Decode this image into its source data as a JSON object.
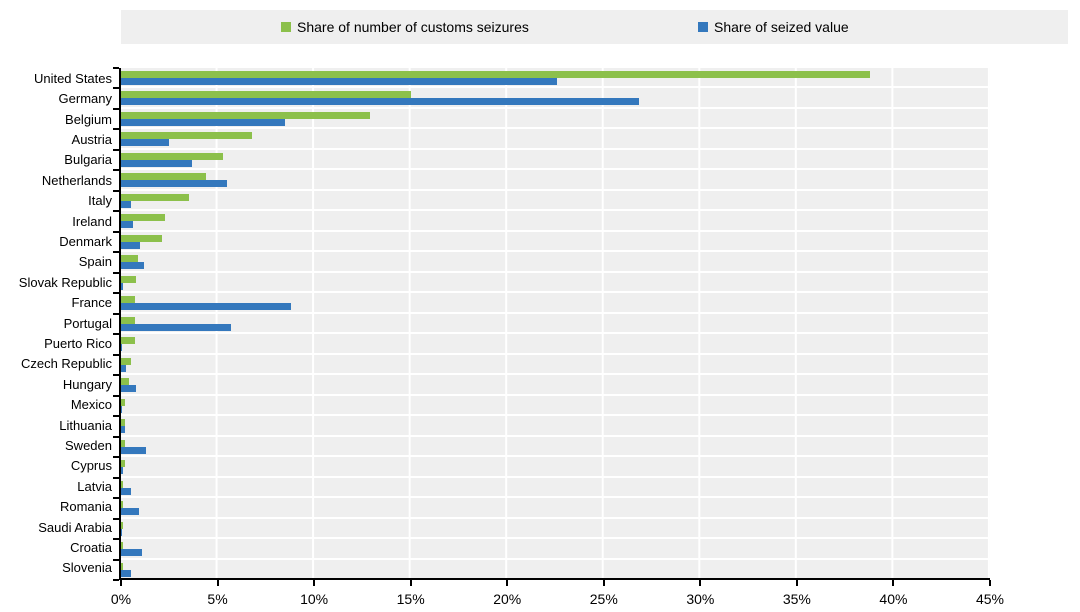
{
  "chart_data": {
    "type": "bar",
    "orientation": "horizontal",
    "title": "",
    "xlabel": "",
    "ylabel": "",
    "xlim": [
      0,
      45
    ],
    "x_ticks": [
      "0%",
      "5%",
      "10%",
      "15%",
      "20%",
      "25%",
      "30%",
      "35%",
      "40%",
      "45%"
    ],
    "grid": "vertical white gridlines every 5% on gray plot background",
    "plot_background": "#efefef",
    "legend_position": "top",
    "legend_background": "#efefef",
    "categories": [
      "United States",
      "Germany",
      "Belgium",
      "Austria",
      "Bulgaria",
      "Netherlands",
      "Italy",
      "Ireland",
      "Denmark",
      "Spain",
      "Slovak Republic",
      "France",
      "Portugal",
      "Puerto Rico",
      "Czech Republic",
      "Hungary",
      "Mexico",
      "Lithuania",
      "Sweden",
      "Cyprus",
      "Latvia",
      "Romania",
      "Saudi Arabia",
      "Croatia",
      "Slovenia"
    ],
    "series": [
      {
        "name": "Share of number of customs seizures",
        "color": "#8CC04B",
        "values": [
          38.8,
          15.0,
          12.9,
          6.8,
          5.3,
          4.4,
          3.5,
          2.3,
          2.1,
          0.9,
          0.8,
          0.7,
          0.7,
          0.7,
          0.5,
          0.4,
          0.2,
          0.2,
          0.2,
          0.2,
          0.1,
          0.1,
          0.1,
          0.1,
          0.1
        ]
      },
      {
        "name": "Share of seized value",
        "color": "#3478BD",
        "values": [
          22.6,
          26.8,
          8.5,
          2.5,
          3.7,
          5.5,
          0.5,
          0.6,
          1.0,
          1.2,
          0.1,
          8.8,
          5.7,
          0.05,
          0.25,
          0.8,
          0.05,
          0.2,
          1.3,
          0.1,
          0.5,
          0.95,
          0.05,
          1.1,
          0.5
        ]
      }
    ]
  }
}
